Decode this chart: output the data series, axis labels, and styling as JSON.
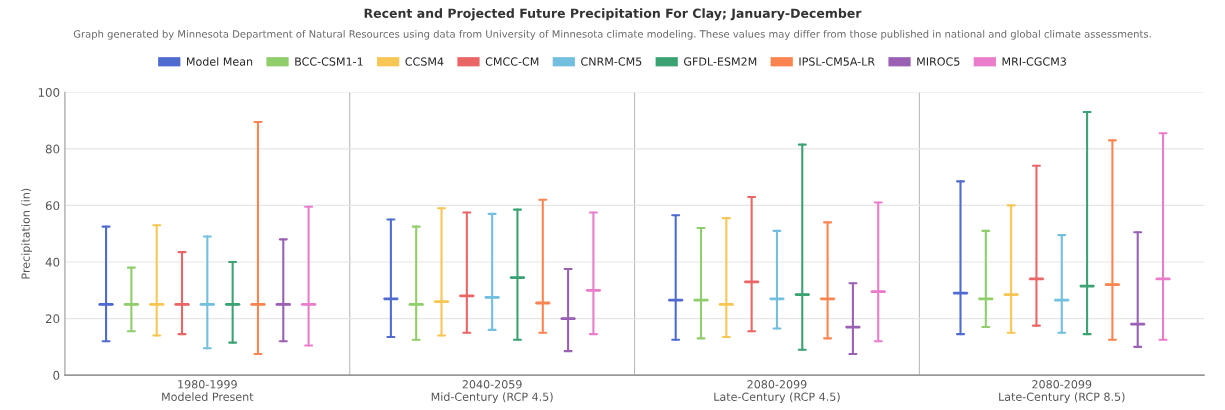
{
  "chart_data": {
    "type": "box",
    "title": "Recent and Projected Future Precipitation For Clay; January-December",
    "subtitle": "Graph generated by Minnesota Department of Natural Resources using data from University of Minnesota climate modeling. These values may differ from those published in national and global climate assessments.",
    "ylabel": "Precipitation (in)",
    "categories": [
      "1980-1999\nModeled Present",
      "2040-2059\nMid-Century (RCP 4.5)",
      "2080-2099\nLate-Century (RCP 4.5)",
      "2080-2099\nLate-Century (RCP 8.5)"
    ],
    "ylim": [
      0,
      100
    ],
    "yticks": [
      0,
      20,
      40,
      60,
      80,
      100
    ],
    "grid": true,
    "legend": "top",
    "series": [
      {
        "name": "Model Mean",
        "color": "#4f6bd0",
        "boxes": [
          {
            "low": 12,
            "q1": 25,
            "median": 25,
            "q3": 25,
            "high": 52.5
          },
          {
            "low": 13.5,
            "q1": 27,
            "median": 27,
            "q3": 27,
            "high": 55
          },
          {
            "low": 12.5,
            "q1": 26.5,
            "median": 26.5,
            "q3": 26.5,
            "high": 56.5
          },
          {
            "low": 14.5,
            "q1": 29,
            "median": 29,
            "q3": 29,
            "high": 68.5
          }
        ]
      },
      {
        "name": "BCC-CSM1-1",
        "color": "#8fce6a",
        "boxes": [
          {
            "low": 15.5,
            "q1": 25,
            "median": 25,
            "q3": 25,
            "high": 38
          },
          {
            "low": 12.5,
            "q1": 25,
            "median": 25,
            "q3": 25,
            "high": 52.5
          },
          {
            "low": 13,
            "q1": 26.5,
            "median": 26.5,
            "q3": 26.5,
            "high": 52
          },
          {
            "low": 17,
            "q1": 27,
            "median": 27,
            "q3": 27,
            "high": 51
          }
        ]
      },
      {
        "name": "CCSM4",
        "color": "#f8c655",
        "boxes": [
          {
            "low": 14,
            "q1": 25,
            "median": 25,
            "q3": 25,
            "high": 53
          },
          {
            "low": 14,
            "q1": 26,
            "median": 26,
            "q3": 26,
            "high": 59
          },
          {
            "low": 13.5,
            "q1": 25,
            "median": 25,
            "q3": 25,
            "high": 55.5
          },
          {
            "low": 15,
            "q1": 28.5,
            "median": 28.5,
            "q3": 28.5,
            "high": 60
          }
        ]
      },
      {
        "name": "CMCC-CM",
        "color": "#ea6566",
        "boxes": [
          {
            "low": 14.5,
            "q1": 25,
            "median": 25,
            "q3": 25,
            "high": 43.5
          },
          {
            "low": 15,
            "q1": 28,
            "median": 28,
            "q3": 28,
            "high": 57.5
          },
          {
            "low": 15.5,
            "q1": 33,
            "median": 33,
            "q3": 33,
            "high": 63
          },
          {
            "low": 17.5,
            "q1": 34,
            "median": 34,
            "q3": 34,
            "high": 74
          }
        ]
      },
      {
        "name": "CNRM-CM5",
        "color": "#72bfdf",
        "boxes": [
          {
            "low": 9.5,
            "q1": 25,
            "median": 25,
            "q3": 25,
            "high": 49
          },
          {
            "low": 16,
            "q1": 27.5,
            "median": 27.5,
            "q3": 27.5,
            "high": 57
          },
          {
            "low": 16.5,
            "q1": 27,
            "median": 27,
            "q3": 27,
            "high": 51
          },
          {
            "low": 15,
            "q1": 26.5,
            "median": 26.5,
            "q3": 26.5,
            "high": 49.5
          }
        ]
      },
      {
        "name": "GFDL-ESM2M",
        "color": "#3ba272",
        "boxes": [
          {
            "low": 11.5,
            "q1": 25,
            "median": 25,
            "q3": 25,
            "high": 40
          },
          {
            "low": 12.5,
            "q1": 34.5,
            "median": 34.5,
            "q3": 34.5,
            "high": 58.5
          },
          {
            "low": 9,
            "q1": 28.5,
            "median": 28.5,
            "q3": 28.5,
            "high": 81.5
          },
          {
            "low": 14.5,
            "q1": 31.5,
            "median": 31.5,
            "q3": 31.5,
            "high": 93
          }
        ]
      },
      {
        "name": "IPSL-CM5A-LR",
        "color": "#fb8451",
        "boxes": [
          {
            "low": 7.5,
            "q1": 25,
            "median": 25,
            "q3": 25,
            "high": 89.5
          },
          {
            "low": 15,
            "q1": 25.5,
            "median": 25.5,
            "q3": 25.5,
            "high": 62
          },
          {
            "low": 13,
            "q1": 27,
            "median": 27,
            "q3": 27,
            "high": 54
          },
          {
            "low": 12.5,
            "q1": 32,
            "median": 32,
            "q3": 32,
            "high": 83
          }
        ]
      },
      {
        "name": "MIROC5",
        "color": "#9a60b4",
        "boxes": [
          {
            "low": 12,
            "q1": 25,
            "median": 25,
            "q3": 25,
            "high": 48
          },
          {
            "low": 8.5,
            "q1": 20,
            "median": 20,
            "q3": 20,
            "high": 37.5
          },
          {
            "low": 7.5,
            "q1": 17,
            "median": 17,
            "q3": 17,
            "high": 32.5
          },
          {
            "low": 10,
            "q1": 18,
            "median": 18,
            "q3": 18,
            "high": 50.5
          }
        ]
      },
      {
        "name": "MRI-CGCM3",
        "color": "#ea7ccc",
        "boxes": [
          {
            "low": 10.5,
            "q1": 25,
            "median": 25,
            "q3": 25,
            "high": 59.5
          },
          {
            "low": 14.5,
            "q1": 30,
            "median": 30,
            "q3": 30,
            "high": 57.5
          },
          {
            "low": 12,
            "q1": 29.5,
            "median": 29.5,
            "q3": 29.5,
            "high": 61
          },
          {
            "low": 12.5,
            "q1": 34,
            "median": 34,
            "q3": 34,
            "high": 85.5
          }
        ]
      }
    ]
  }
}
